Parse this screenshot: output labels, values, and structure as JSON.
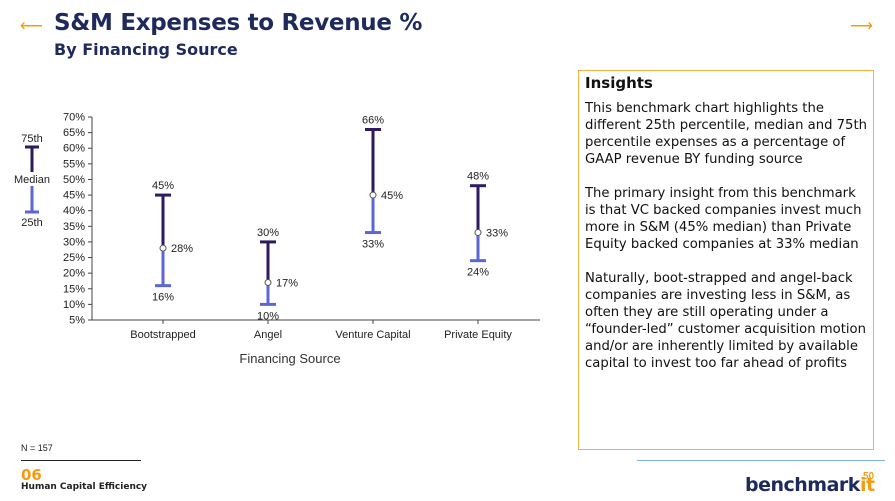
{
  "header": {
    "title": "S&M Expenses to Revenue %",
    "subtitle": "By Financing Source",
    "arrow_left": "⟵",
    "arrow_right": "⟶"
  },
  "legend": {
    "top": "75th",
    "middle": "Median",
    "bottom": "25th"
  },
  "insights": {
    "heading": "Insights",
    "paragraphs": [
      "This benchmark chart highlights the different 25th percentile, median and 75th percentile expenses as a percentage of GAAP revenue BY funding source",
      "The primary insight from this benchmark is that VC backed companies invest much more in S&M (45% median) than Private Equity backed companies at 33% median",
      "Naturally, boot-strapped and angel-back companies are investing  less in S&M, as often they are still operating under a “founder-led” customer acquisition motion and/or are inherently limited by available capital to invest too far ahead of profits"
    ]
  },
  "footer": {
    "n": "N = 157",
    "section_number": "06",
    "section_label": "Human Capital Efficiency",
    "logo_main": "benchmark",
    "logo_accent": "it",
    "page_number": "50"
  },
  "chart_data": {
    "type": "range",
    "title": "",
    "xlabel": "Financing Source",
    "ylabel": "",
    "ylim": [
      5,
      70
    ],
    "yticks": [
      "5%",
      "10%",
      "15%",
      "20%",
      "25%",
      "30%",
      "35%",
      "40%",
      "45%",
      "50%",
      "55%",
      "60%",
      "65%",
      "70%"
    ],
    "categories": [
      "Bootstrapped",
      "Angel",
      "Venture Capital",
      "Private Equity"
    ],
    "series": [
      {
        "name": "25th",
        "values": [
          16,
          10,
          33,
          24
        ]
      },
      {
        "name": "Median",
        "values": [
          28,
          17,
          45,
          33
        ]
      },
      {
        "name": "75th",
        "values": [
          45,
          30,
          66,
          48
        ]
      }
    ],
    "labels": {
      "p25": [
        "16%",
        "10%",
        "33%",
        "24%"
      ],
      "median": [
        "28%",
        "17%",
        "45%",
        "33%"
      ],
      "p75": [
        "45%",
        "30%",
        "66%",
        "48%"
      ]
    },
    "colors": {
      "upper": "#2e1a5e",
      "lower": "#5b67d6",
      "axis": "#444444"
    }
  }
}
